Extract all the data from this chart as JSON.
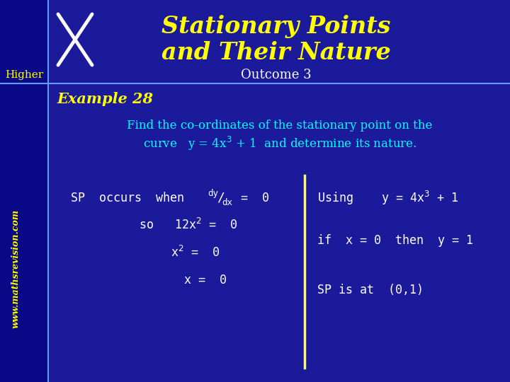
{
  "bg_color": "#1a1a9a",
  "sidebar_color": "#0000aa",
  "header_color": "#1a1a9a",
  "title_line1": "Stationary Points",
  "title_line2": "and Their Nature",
  "title_color": "#ffff00",
  "outcome_text": "Outcome 3",
  "outcome_color": "#ffffff",
  "higher_text": "Higher",
  "higher_color": "#ffff00",
  "website_text": "www.mathsrevision.com",
  "website_color": "#ffff00",
  "example_text": "Example 28",
  "example_color": "#ffff00",
  "desc_color": "#00ffff",
  "content_color": "#ffffff",
  "divider_color": "#ffff44",
  "header_line_color": "#6699ff",
  "sidebar_line_color": "#6699ff"
}
